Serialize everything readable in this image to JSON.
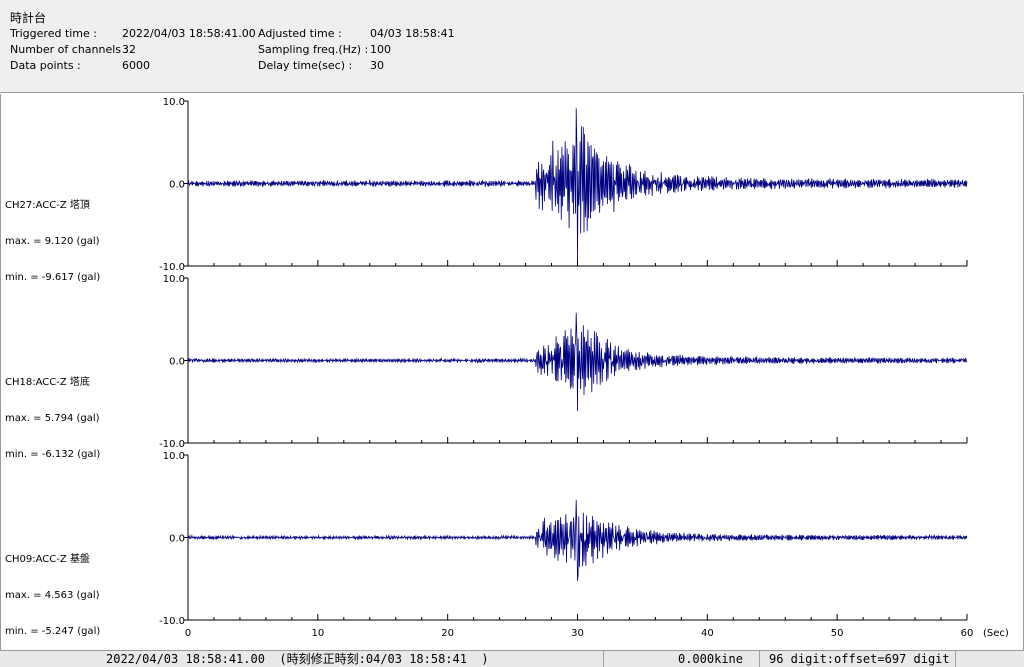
{
  "header": {
    "title": "時計台",
    "triggered_label": "Triggered time :",
    "triggered_value": "2022/04/03 18:58:41.00",
    "channels_label": "Number of channels :",
    "channels_value": "32",
    "datapoints_label": "Data points :",
    "datapoints_value": "6000",
    "adjusted_label": "Adjusted time :",
    "adjusted_value": "04/03 18:58:41",
    "sampling_label": "Sampling freq.(Hz) :",
    "sampling_value": "100",
    "delay_label": "Delay time(sec) :",
    "delay_value": "30"
  },
  "chart_data": {
    "type": "line",
    "x_unit_label": "(Sec)",
    "xlim": [
      0,
      60
    ],
    "x_ticks": [
      0,
      10,
      20,
      30,
      40,
      50,
      60
    ],
    "x_tick_labels": [
      "0",
      "10",
      "20",
      "30",
      "40",
      "50",
      "60"
    ],
    "ylim": [
      -10,
      10
    ],
    "y_tick_labels": [
      "10.0",
      "0.0",
      "-10.0"
    ],
    "line_color": "#000080",
    "grid": false,
    "onset_sec": 26.8,
    "peak_sec": 30.0,
    "series": [
      {
        "name": "CH27:ACC-Z 塔頂",
        "max_text": "max. = 9.120 (gal)",
        "min_text": "min. = -9.617 (gal)",
        "max": 9.12,
        "min": -9.617
      },
      {
        "name": "CH18:ACC-Z 塔底",
        "max_text": "max. = 5.794 (gal)",
        "min_text": "min. = -6.132 (gal)",
        "max": 5.794,
        "min": -6.132
      },
      {
        "name": "CH09:ACC-Z 基盤",
        "max_text": "max. = 4.563 (gal)",
        "min_text": "min. = -5.247 (gal)",
        "max": 4.563,
        "min": -5.247
      }
    ]
  },
  "status": {
    "time_text": "2022/04/03 18:58:41.00  (時刻修正時刻:04/03 18:58:41  )",
    "kine_text": "0.000kine",
    "digit_text": "96 digit:offset=697 digit"
  }
}
